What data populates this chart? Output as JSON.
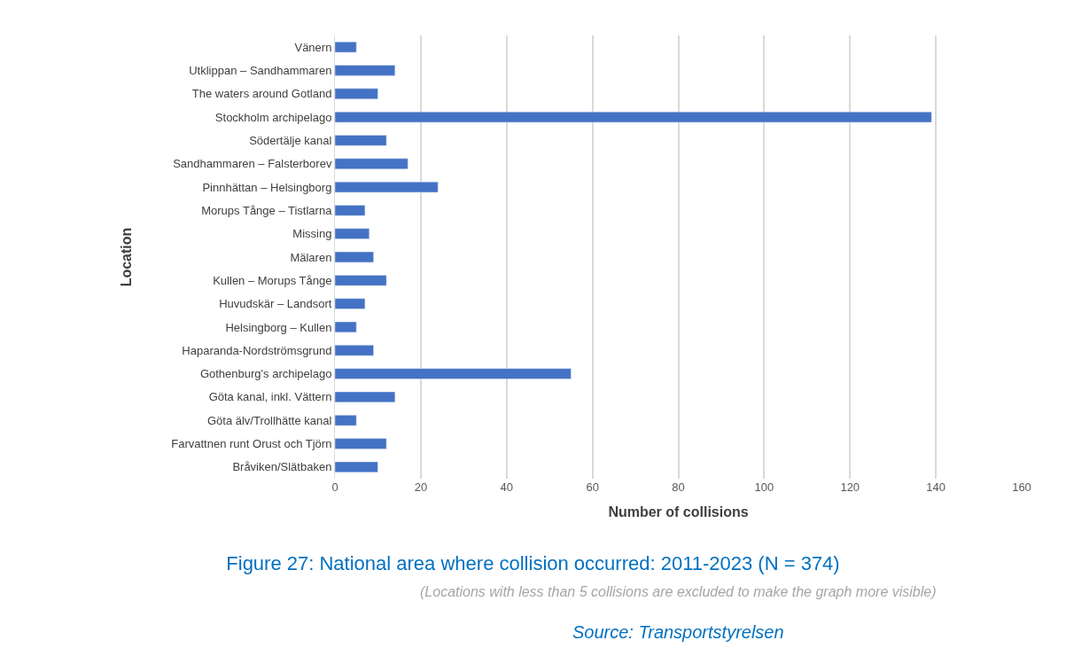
{
  "chart_data": {
    "type": "bar",
    "orientation": "horizontal",
    "title": "Figure 27: National area where collision occurred: 2011-2023 (N = 374)",
    "subtitle": "(Locations with less than 5 collisions are excluded to make the graph more visible)",
    "annotations": [
      "Source: Transportstyrelsen"
    ],
    "xlabel": "Number of collisions",
    "ylabel": "Location",
    "categories": [
      "Vänern",
      "Utklippan – Sandhammaren",
      "The waters around Gotland",
      "Stockholm archipelago",
      "Södertälje kanal",
      "Sandhammaren – Falsterborev",
      "Pinnhättan – Helsingborg",
      "Morups Tånge – Tistlarna",
      "Missing",
      "Mälaren",
      "Kullen – Morups Tånge",
      "Huvudskär – Landsort",
      "Helsingborg – Kullen",
      "Haparanda-Nordströmsgrund",
      "Gothenburg's archipelago",
      "Göta kanal, inkl. Vättern",
      "Göta älv/Trollhätte kanal",
      "Farvattnen runt Orust och Tjörn",
      "Bråviken/Slätbaken"
    ],
    "values": [
      5,
      14,
      10,
      139,
      12,
      17,
      24,
      7,
      8,
      9,
      12,
      7,
      5,
      9,
      55,
      14,
      5,
      12,
      10
    ],
    "color": "#4472c4",
    "xlim": [
      0,
      160
    ],
    "xticks": [
      0,
      20,
      40,
      60,
      80,
      100,
      120,
      140,
      160
    ],
    "grid": "x"
  }
}
